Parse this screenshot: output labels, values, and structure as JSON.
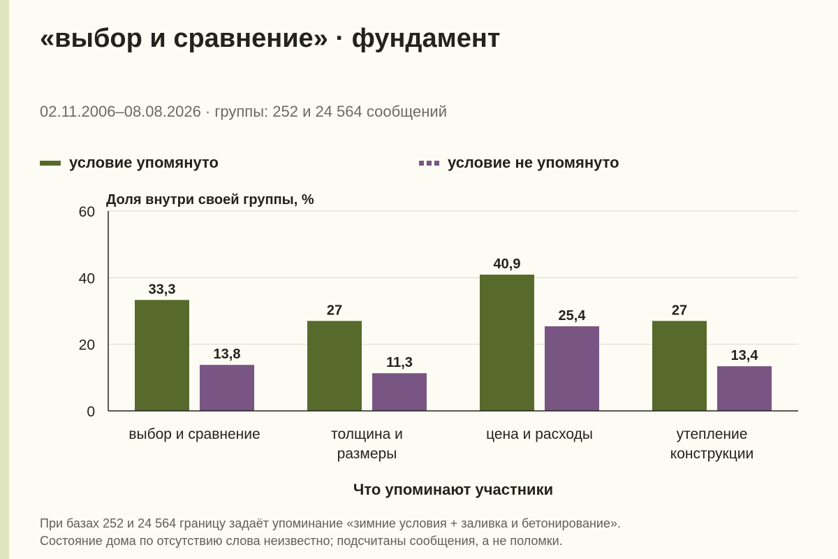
{
  "header": {
    "title": "«выбор и сравнение» · фундамент",
    "subtitle": "02.11.2006–08.08.2026 · группы: 252 и 24 564 сообщений"
  },
  "legend": {
    "items": [
      {
        "label": "условие упомянуто",
        "color": "#586a2b",
        "style": "solid"
      },
      {
        "label": "условие не упомянуто",
        "color": "#795583",
        "style": "dashed"
      }
    ]
  },
  "footnote": {
    "line1": "При базах 252 и 24 564 границу задаёт упоминание «зимние условия + заливка и бетонирование».",
    "line2": "Состояние дома по отсутствию слова неизвестно; подсчитаны сообщения, а не поломки."
  },
  "chart_data": {
    "type": "bar",
    "ylabel": "Доля внутри своей группы, %",
    "xlabel": "Что упоминают участники",
    "ylim": [
      0,
      60
    ],
    "yticks": [
      0,
      20,
      40,
      60
    ],
    "grid": true,
    "categories": [
      [
        "выбор и сравнение"
      ],
      [
        "толщина и",
        "размеры"
      ],
      [
        "цена и расходы"
      ],
      [
        "утепление",
        "конструкции"
      ]
    ],
    "series": [
      {
        "name": "условие упомянуто",
        "color": "#586a2b",
        "values": [
          33.3,
          27,
          40.9,
          27
        ],
        "labels": [
          "33,3",
          "27",
          "40,9",
          "27"
        ]
      },
      {
        "name": "условие не упомянуто",
        "color": "#795583",
        "values": [
          13.8,
          11.3,
          25.4,
          13.4
        ],
        "labels": [
          "13,8",
          "11,3",
          "25,4",
          "13,4"
        ]
      }
    ]
  }
}
